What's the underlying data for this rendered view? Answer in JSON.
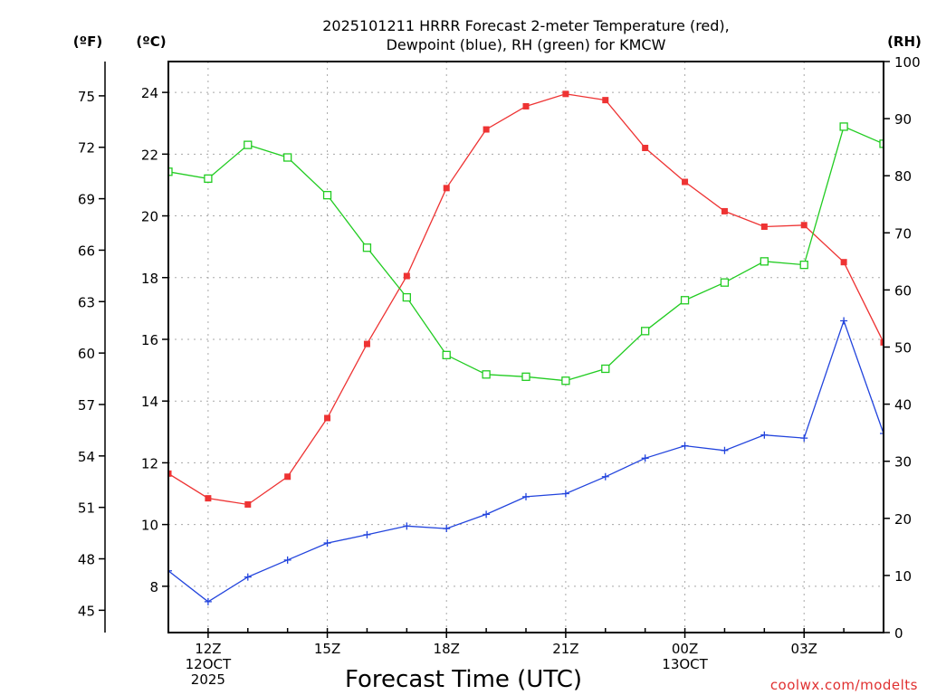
{
  "chart_data": {
    "type": "line",
    "title_lines": [
      "2025101211 HRRR Forecast 2-meter Temperature (red),",
      "Dewpoint (blue), RH (green) for KMCW"
    ],
    "xlabel": "Forecast Time (UTC)",
    "credit": "coolwx.com/modelts",
    "units": {
      "f": "(ºF)",
      "c": "(ºC)",
      "rh": "(RH)"
    },
    "x_hours": [
      0,
      1,
      2,
      3,
      4,
      5,
      6,
      7,
      8,
      9,
      10,
      11,
      12,
      13,
      14,
      15,
      16,
      17,
      18
    ],
    "x_range": [
      0,
      18
    ],
    "x_ticks": [
      {
        "hour": 1,
        "lines": [
          "12Z",
          "12OCT",
          "2025"
        ]
      },
      {
        "hour": 4,
        "lines": [
          "15Z"
        ]
      },
      {
        "hour": 7,
        "lines": [
          "18Z"
        ]
      },
      {
        "hour": 10,
        "lines": [
          "21Z"
        ]
      },
      {
        "hour": 13,
        "lines": [
          "00Z",
          "13OCT"
        ]
      },
      {
        "hour": 16,
        "lines": [
          "03Z"
        ]
      }
    ],
    "celsius_axis": {
      "range": [
        6.5,
        25
      ],
      "ticks": [
        8,
        10,
        12,
        14,
        16,
        18,
        20,
        22,
        24
      ]
    },
    "fahrenheit_axis": {
      "ticks": [
        45,
        48,
        51,
        54,
        57,
        60,
        63,
        66,
        69,
        72,
        75
      ]
    },
    "rh_axis": {
      "range": [
        0,
        100
      ],
      "ticks": [
        0,
        10,
        20,
        30,
        40,
        50,
        60,
        70,
        80,
        90,
        100
      ]
    },
    "series": [
      {
        "name": "Temperature",
        "axis": "celsius",
        "color": "#ee3333",
        "marker": "filled-square",
        "values": [
          11.65,
          10.85,
          10.65,
          11.55,
          13.45,
          15.85,
          18.05,
          20.9,
          22.8,
          23.55,
          23.95,
          23.75,
          22.2,
          21.1,
          20.15,
          19.65,
          19.7,
          18.5,
          15.9
        ]
      },
      {
        "name": "Dewpoint",
        "axis": "celsius",
        "color": "#2244dd",
        "marker": "plus",
        "values": [
          8.5,
          7.5,
          8.3,
          8.85,
          9.4,
          9.67,
          9.95,
          9.87,
          10.33,
          10.9,
          11.0,
          11.55,
          12.15,
          12.55,
          12.4,
          12.9,
          12.8,
          16.6,
          12.95
        ]
      },
      {
        "name": "RH",
        "axis": "rh",
        "color": "#22cc22",
        "marker": "open-square",
        "values": [
          80.7,
          79.5,
          85.4,
          83.2,
          76.6,
          67.4,
          58.7,
          48.6,
          45.2,
          44.8,
          44.1,
          46.2,
          52.8,
          58.2,
          61.3,
          65.0,
          64.4,
          88.6,
          85.6
        ]
      }
    ]
  }
}
